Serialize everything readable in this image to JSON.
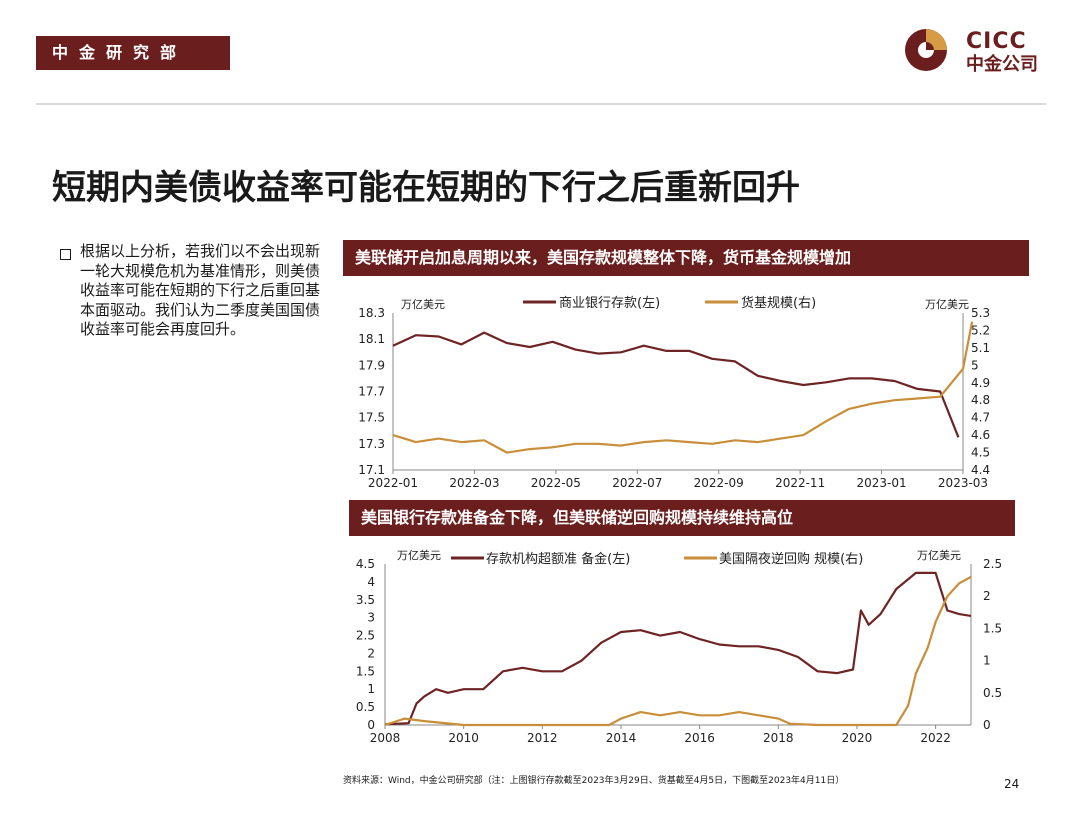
{
  "header": {
    "dept": "中金研究部"
  },
  "logo": {
    "en": "CICC",
    "cn": "中金公司"
  },
  "page_title": "短期内美债收益率可能在短期的下行之后重新回升",
  "bullet": "根据以上分析，若我们以不会出现新一轮大规模危机为基准情形，则美债收益率可能在短期的下行之后重回基本面驱动。我们认为二季度美国国债收益率可能会再度回升。",
  "colors": {
    "brand": "#6b1e1e",
    "series_dark": "#6e2424",
    "series_gold": "#c98e3a"
  },
  "chart_data": [
    {
      "type": "line",
      "title": "美联储开启加息周期以来，美国存款规模整体下降，货币基金规模增加",
      "left_unit": "万亿美元",
      "right_unit": "万亿美元",
      "x_ticks": [
        "2022-01",
        "2022-03",
        "2022-05",
        "2022-07",
        "2022-09",
        "2022-11",
        "2023-01",
        "2023-03"
      ],
      "ylim_left": [
        17.1,
        18.3
      ],
      "yticks_left": [
        "18.3",
        "18.1",
        "17.9",
        "17.7",
        "17.5",
        "17.3",
        "17.1"
      ],
      "ylim_right": [
        4.4,
        5.3
      ],
      "yticks_right": [
        "5.3",
        "5.2",
        "5.1",
        "5",
        "4.9",
        "4.8",
        "4.7",
        "4.6",
        "4.5",
        "4.4"
      ],
      "series": [
        {
          "name": "商业银行存款(左)",
          "axis": "left",
          "x": [
            2022.0,
            2022.05,
            2022.1,
            2022.15,
            2022.2,
            2022.25,
            2022.3,
            2022.35,
            2022.4,
            2022.45,
            2022.5,
            2022.55,
            2022.6,
            2022.65,
            2022.7,
            2022.75,
            2022.8,
            2022.85,
            2022.9,
            2022.95,
            2023.0,
            2023.05,
            2023.1,
            2023.15,
            2023.2,
            2023.24
          ],
          "y": [
            18.05,
            18.13,
            18.12,
            18.06,
            18.15,
            18.07,
            18.04,
            18.08,
            18.02,
            17.99,
            18.0,
            18.05,
            18.01,
            18.01,
            17.95,
            17.93,
            17.82,
            17.78,
            17.75,
            17.77,
            17.8,
            17.8,
            17.78,
            17.72,
            17.7,
            17.35
          ]
        },
        {
          "name": "货基规模(右)",
          "axis": "right",
          "x": [
            2022.0,
            2022.05,
            2022.1,
            2022.15,
            2022.2,
            2022.25,
            2022.3,
            2022.35,
            2022.4,
            2022.45,
            2022.5,
            2022.55,
            2022.6,
            2022.65,
            2022.7,
            2022.75,
            2022.8,
            2022.85,
            2022.9,
            2022.95,
            2023.0,
            2023.05,
            2023.1,
            2023.15,
            2023.2,
            2023.25,
            2023.27
          ],
          "y": [
            4.6,
            4.56,
            4.58,
            4.56,
            4.57,
            4.5,
            4.52,
            4.53,
            4.55,
            4.55,
            4.54,
            4.56,
            4.57,
            4.56,
            4.55,
            4.57,
            4.56,
            4.58,
            4.6,
            4.68,
            4.75,
            4.78,
            4.8,
            4.81,
            4.82,
            4.98,
            5.25
          ]
        }
      ]
    },
    {
      "type": "line",
      "title": "美国银行存款准备金下降，但美联储逆回购规模持续维持高位",
      "left_unit": "万亿美元",
      "right_unit": "万亿美元",
      "x_ticks": [
        "2008",
        "2010",
        "2012",
        "2014",
        "2016",
        "2018",
        "2020",
        "2022"
      ],
      "ylim_left": [
        0,
        4.5
      ],
      "yticks_left": [
        "4.5",
        "4",
        "3.5",
        "3",
        "2.5",
        "2",
        "1.5",
        "1",
        "0.5",
        "0"
      ],
      "ylim_right": [
        0,
        2.5
      ],
      "yticks_right": [
        "2.5",
        "2",
        "1.5",
        "1",
        "0.5",
        "0"
      ],
      "series": [
        {
          "name": "存款机构超额准 备金(左)",
          "axis": "left",
          "x": [
            2008.0,
            2008.6,
            2008.8,
            2009.0,
            2009.3,
            2009.6,
            2010.0,
            2010.5,
            2011.0,
            2011.5,
            2012.0,
            2012.5,
            2013.0,
            2013.5,
            2014.0,
            2014.5,
            2015.0,
            2015.5,
            2016.0,
            2016.5,
            2017.0,
            2017.5,
            2018.0,
            2018.5,
            2019.0,
            2019.5,
            2019.9,
            2020.1,
            2020.3,
            2020.6,
            2021.0,
            2021.5,
            2022.0,
            2022.3,
            2022.6,
            2022.9
          ],
          "y": [
            0.02,
            0.05,
            0.6,
            0.8,
            1.0,
            0.9,
            1.0,
            1.0,
            1.5,
            1.6,
            1.5,
            1.5,
            1.8,
            2.3,
            2.6,
            2.65,
            2.5,
            2.6,
            2.4,
            2.25,
            2.2,
            2.2,
            2.1,
            1.9,
            1.5,
            1.45,
            1.55,
            3.2,
            2.8,
            3.1,
            3.8,
            4.25,
            4.25,
            3.2,
            3.1,
            3.05
          ]
        },
        {
          "name": "美国隔夜逆回购 规模(右)",
          "axis": "right",
          "x": [
            2008.0,
            2008.5,
            2009.0,
            2010.0,
            2011.0,
            2012.0,
            2013.0,
            2013.7,
            2014.0,
            2014.5,
            2015.0,
            2015.5,
            2016.0,
            2016.5,
            2017.0,
            2017.5,
            2018.0,
            2018.3,
            2019.0,
            2020.0,
            2021.0,
            2021.3,
            2021.5,
            2021.8,
            2022.0,
            2022.3,
            2022.6,
            2022.9
          ],
          "y": [
            0.0,
            0.1,
            0.06,
            0.0,
            0.0,
            0.0,
            0.0,
            0.0,
            0.1,
            0.2,
            0.15,
            0.2,
            0.15,
            0.15,
            0.2,
            0.15,
            0.1,
            0.02,
            0.0,
            0.0,
            0.0,
            0.3,
            0.8,
            1.2,
            1.6,
            2.0,
            2.2,
            2.3
          ]
        }
      ]
    }
  ],
  "source": "资料来源：Wind，中金公司研究部（注：上图银行存款截至2023年3月29日、货基截至4月5日，下图截至2023年4月11日）",
  "page_number": "24"
}
